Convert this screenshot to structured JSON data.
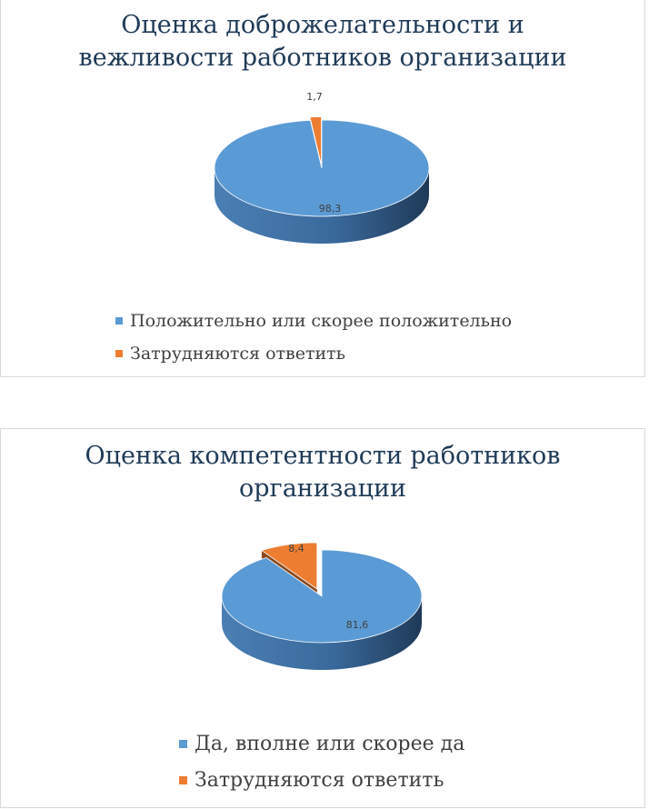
{
  "colors": {
    "blue": "#5b9bd5",
    "orange": "#ed7d31"
  },
  "chart_data": [
    {
      "type": "pie",
      "title": [
        "Оценка доброжелательности и",
        "вежливости работников организации"
      ],
      "categories": [
        "Положительно или скорее положительно",
        "Затрудняются ответить"
      ],
      "values": [
        98.3,
        1.7
      ],
      "labels": [
        "98,3",
        "1,7"
      ],
      "legend_position": "bottom"
    },
    {
      "type": "pie",
      "title": [
        "Оценка компетентности работников",
        "организации"
      ],
      "categories": [
        "Да, вполне или скорее да",
        "Затрудняются ответить"
      ],
      "values": [
        81.6,
        8.4
      ],
      "labels": [
        "81,6",
        "8,4"
      ],
      "legend_position": "bottom"
    }
  ]
}
